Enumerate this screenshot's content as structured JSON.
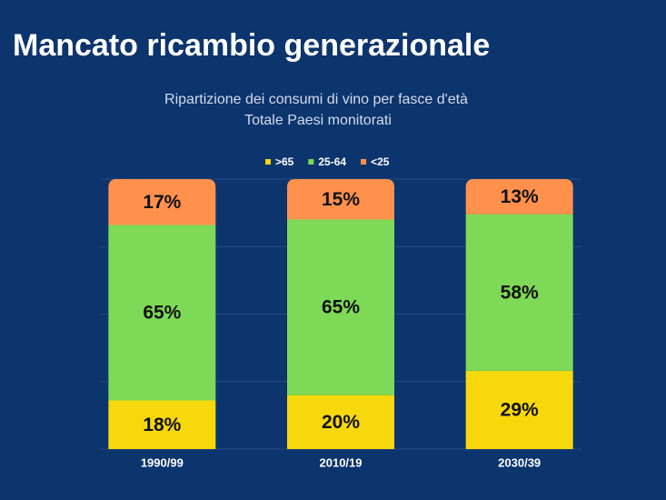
{
  "chart_data": {
    "type": "stacked_bar",
    "title": "Mancato ricambio generazionale",
    "subtitle": [
      "Ripartizione dei consumi di vino per fasce d'età",
      "Totale Paesi monitorati"
    ],
    "categories": [
      "1990/99",
      "2010/19",
      "2030/39"
    ],
    "series": [
      {
        "name": ">65",
        "color": "#f7d80c",
        "values": [
          18,
          20,
          29
        ],
        "value_labels": [
          "18%",
          "20%",
          "29%"
        ]
      },
      {
        "name": "25-64",
        "color": "#7ed957",
        "values": [
          65,
          65,
          58
        ],
        "value_labels": [
          "65%",
          "65%",
          "58%"
        ]
      },
      {
        "name": "<25",
        "color": "#ff914d",
        "values": [
          17,
          15,
          13
        ],
        "value_labels": [
          "17%",
          "15%",
          "13%"
        ]
      }
    ],
    "ylim": [
      0,
      100
    ],
    "yticks": [
      0,
      25,
      50,
      75,
      100
    ],
    "grid": true
  }
}
